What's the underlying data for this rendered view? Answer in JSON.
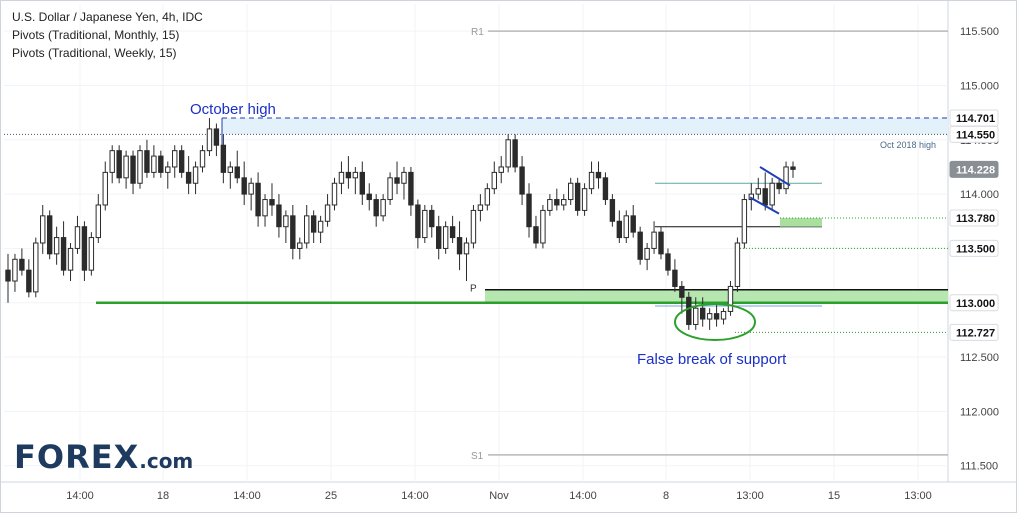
{
  "header": {
    "symbol_line": "U.S. Dollar / Japanese Yen, 4h, IDC",
    "pivot_monthly": "Pivots (Traditional, Monthly, 15)",
    "pivot_weekly": "Pivots (Traditional, Weekly, 15)"
  },
  "logo": {
    "text_main": "FOREX",
    "text_suffix": ".com",
    "color": "#1f3a5f",
    "accent": "#2a9d3a"
  },
  "chart_data": {
    "type": "candlestick",
    "title": "U.S. Dollar / Japanese Yen, 4h, IDC",
    "y_axis": {
      "ylim": [
        111.35,
        115.75
      ],
      "tick_values": [
        111.5,
        112.0,
        112.5,
        113.0,
        113.5,
        114.0,
        114.5,
        115.0,
        115.5
      ],
      "tick_labels": [
        "111.500",
        "112.000",
        "112.500",
        "113.000",
        "113.500",
        "114.000",
        "114.500",
        "115.000",
        "115.500"
      ],
      "side": "right"
    },
    "x_axis": {
      "tick_labels": [
        "14:00",
        "18",
        "14:00",
        "25",
        "14:00",
        "Nov",
        "14:00",
        "8",
        "13:00",
        "15",
        "13:00"
      ]
    },
    "grid": true,
    "price_badges": [
      {
        "value": 114.701,
        "label": "114.701",
        "style": "white"
      },
      {
        "value": 114.55,
        "label": "114.550",
        "style": "white"
      },
      {
        "value": 114.228,
        "label": "114.228",
        "style": "grey"
      },
      {
        "value": 113.78,
        "label": "113.780",
        "style": "white"
      },
      {
        "value": 113.5,
        "label": "113.500",
        "style": "white"
      },
      {
        "value": 113.0,
        "label": "113.000",
        "style": "white"
      },
      {
        "value": 112.727,
        "label": "112.727",
        "style": "white"
      }
    ],
    "pivot_labels": [
      {
        "name": "R1",
        "value": 115.5
      },
      {
        "name": "P",
        "value": 113.12
      },
      {
        "name": "S1",
        "value": 111.6
      }
    ],
    "annotations": {
      "october_high": "October high",
      "oct_2018_high": "Oct 2018 high",
      "false_break": "False break of support"
    },
    "colors": {
      "candle": "#2b2b2b",
      "support_green": "#2ca02c",
      "zone_green": "#b7e7b0",
      "dashed_blue": "#1f3fb4",
      "pivot_grey": "#b8b8b8",
      "annotation_blue": "#1c2fc6",
      "teal": "#5aa9a0"
    },
    "candles": [
      [
        113.3,
        113.45,
        113.0,
        113.2
      ],
      [
        113.2,
        113.45,
        113.1,
        113.4
      ],
      [
        113.4,
        113.5,
        113.25,
        113.3
      ],
      [
        113.3,
        113.4,
        113.05,
        113.1
      ],
      [
        113.1,
        113.6,
        113.05,
        113.55
      ],
      [
        113.55,
        113.9,
        113.45,
        113.8
      ],
      [
        113.8,
        113.85,
        113.4,
        113.45
      ],
      [
        113.45,
        113.7,
        113.35,
        113.6
      ],
      [
        113.6,
        113.75,
        113.25,
        113.3
      ],
      [
        113.3,
        113.55,
        113.2,
        113.5
      ],
      [
        113.5,
        113.8,
        113.45,
        113.7
      ],
      [
        113.7,
        113.75,
        113.2,
        113.3
      ],
      [
        113.3,
        113.65,
        113.25,
        113.6
      ],
      [
        113.6,
        114.0,
        113.55,
        113.9
      ],
      [
        113.9,
        114.3,
        113.85,
        114.2
      ],
      [
        114.2,
        114.45,
        114.1,
        114.4
      ],
      [
        114.4,
        114.45,
        114.1,
        114.15
      ],
      [
        114.15,
        114.4,
        114.05,
        114.35
      ],
      [
        114.35,
        114.4,
        114.0,
        114.1
      ],
      [
        114.1,
        114.45,
        114.05,
        114.4
      ],
      [
        114.4,
        114.5,
        114.15,
        114.2
      ],
      [
        114.2,
        114.45,
        114.15,
        114.35
      ],
      [
        114.35,
        114.4,
        114.15,
        114.2
      ],
      [
        114.2,
        114.3,
        114.05,
        114.25
      ],
      [
        114.25,
        114.45,
        114.15,
        114.4
      ],
      [
        114.4,
        114.45,
        114.15,
        114.2
      ],
      [
        114.2,
        114.35,
        114.0,
        114.1
      ],
      [
        114.1,
        114.3,
        114.0,
        114.25
      ],
      [
        114.25,
        114.45,
        114.2,
        114.4
      ],
      [
        114.4,
        114.7,
        114.35,
        114.6
      ],
      [
        114.6,
        114.65,
        114.35,
        114.45
      ],
      [
        114.45,
        114.55,
        114.1,
        114.2
      ],
      [
        114.2,
        114.3,
        114.05,
        114.25
      ],
      [
        114.25,
        114.4,
        114.1,
        114.15
      ],
      [
        114.15,
        114.3,
        113.9,
        114.0
      ],
      [
        114.0,
        114.15,
        113.85,
        114.1
      ],
      [
        114.1,
        114.2,
        113.7,
        113.8
      ],
      [
        113.8,
        114.0,
        113.7,
        113.95
      ],
      [
        113.95,
        114.1,
        113.8,
        113.9
      ],
      [
        113.9,
        114.0,
        113.6,
        113.7
      ],
      [
        113.7,
        113.85,
        113.55,
        113.8
      ],
      [
        113.8,
        113.9,
        113.4,
        113.5
      ],
      [
        113.5,
        113.6,
        113.4,
        113.55
      ],
      [
        113.55,
        113.9,
        113.5,
        113.8
      ],
      [
        113.8,
        113.85,
        113.55,
        113.65
      ],
      [
        113.65,
        113.8,
        113.55,
        113.75
      ],
      [
        113.75,
        114.0,
        113.7,
        113.9
      ],
      [
        113.9,
        114.15,
        113.85,
        114.1
      ],
      [
        114.1,
        114.3,
        114.0,
        114.2
      ],
      [
        114.2,
        114.35,
        114.05,
        114.15
      ],
      [
        114.15,
        114.25,
        114.0,
        114.2
      ],
      [
        114.2,
        114.3,
        113.9,
        114.0
      ],
      [
        114.0,
        114.1,
        113.85,
        113.95
      ],
      [
        113.95,
        114.0,
        113.7,
        113.8
      ],
      [
        113.8,
        114.0,
        113.75,
        113.95
      ],
      [
        113.95,
        114.2,
        113.9,
        114.15
      ],
      [
        114.15,
        114.3,
        114.0,
        114.1
      ],
      [
        114.1,
        114.25,
        113.95,
        114.2
      ],
      [
        114.2,
        114.25,
        113.8,
        113.9
      ],
      [
        113.9,
        113.95,
        113.5,
        113.6
      ],
      [
        113.6,
        113.9,
        113.55,
        113.85
      ],
      [
        113.85,
        113.9,
        113.6,
        113.7
      ],
      [
        113.7,
        113.8,
        113.4,
        113.5
      ],
      [
        113.5,
        113.75,
        113.45,
        113.7
      ],
      [
        113.7,
        113.8,
        113.55,
        113.6
      ],
      [
        113.6,
        113.75,
        113.3,
        113.45
      ],
      [
        113.45,
        113.6,
        113.2,
        113.55
      ],
      [
        113.55,
        113.9,
        113.5,
        113.85
      ],
      [
        113.85,
        114.0,
        113.75,
        113.9
      ],
      [
        113.9,
        114.1,
        113.85,
        114.05
      ],
      [
        114.05,
        114.3,
        114.0,
        114.2
      ],
      [
        114.2,
        114.35,
        114.1,
        114.25
      ],
      [
        114.25,
        114.55,
        114.2,
        114.5
      ],
      [
        114.5,
        114.55,
        114.2,
        114.25
      ],
      [
        114.25,
        114.35,
        113.9,
        114.0
      ],
      [
        114.0,
        114.1,
        113.6,
        113.7
      ],
      [
        113.7,
        113.8,
        113.5,
        113.55
      ],
      [
        113.55,
        113.9,
        113.5,
        113.85
      ],
      [
        113.85,
        114.0,
        113.8,
        113.95
      ],
      [
        113.95,
        114.05,
        113.85,
        113.9
      ],
      [
        113.9,
        114.0,
        113.85,
        113.95
      ],
      [
        113.95,
        114.15,
        113.9,
        114.1
      ],
      [
        114.1,
        114.15,
        113.8,
        113.85
      ],
      [
        113.85,
        114.1,
        113.8,
        114.05
      ],
      [
        114.05,
        114.3,
        114.0,
        114.2
      ],
      [
        114.2,
        114.3,
        114.05,
        114.15
      ],
      [
        114.15,
        114.2,
        113.9,
        113.95
      ],
      [
        113.95,
        114.0,
        113.7,
        113.75
      ],
      [
        113.75,
        113.85,
        113.55,
        113.6
      ],
      [
        113.6,
        113.85,
        113.55,
        113.8
      ],
      [
        113.8,
        113.9,
        113.6,
        113.65
      ],
      [
        113.65,
        113.7,
        113.35,
        113.4
      ],
      [
        113.4,
        113.55,
        113.3,
        113.5
      ],
      [
        113.5,
        113.75,
        113.45,
        113.65
      ],
      [
        113.65,
        113.7,
        113.4,
        113.45
      ],
      [
        113.45,
        113.5,
        113.25,
        113.3
      ],
      [
        113.3,
        113.4,
        113.1,
        113.15
      ],
      [
        113.15,
        113.2,
        112.9,
        113.05
      ],
      [
        113.05,
        113.1,
        112.75,
        112.8
      ],
      [
        112.8,
        113.05,
        112.75,
        112.95
      ],
      [
        112.95,
        113.05,
        112.78,
        112.85
      ],
      [
        112.85,
        112.95,
        112.75,
        112.9
      ],
      [
        112.9,
        112.98,
        112.78,
        112.85
      ],
      [
        112.85,
        112.95,
        112.8,
        112.92
      ],
      [
        112.92,
        113.2,
        112.88,
        113.15
      ],
      [
        113.15,
        113.6,
        113.1,
        113.55
      ],
      [
        113.55,
        114.0,
        113.5,
        113.95
      ],
      [
        113.95,
        114.1,
        113.85,
        114.0
      ],
      [
        114.0,
        114.15,
        113.95,
        114.05
      ],
      [
        114.05,
        114.2,
        113.85,
        113.9
      ],
      [
        113.9,
        114.15,
        113.85,
        114.1
      ],
      [
        114.1,
        114.15,
        114.0,
        114.05
      ],
      [
        114.05,
        114.3,
        114.0,
        114.25
      ],
      [
        114.25,
        114.3,
        114.15,
        114.228
      ]
    ]
  }
}
